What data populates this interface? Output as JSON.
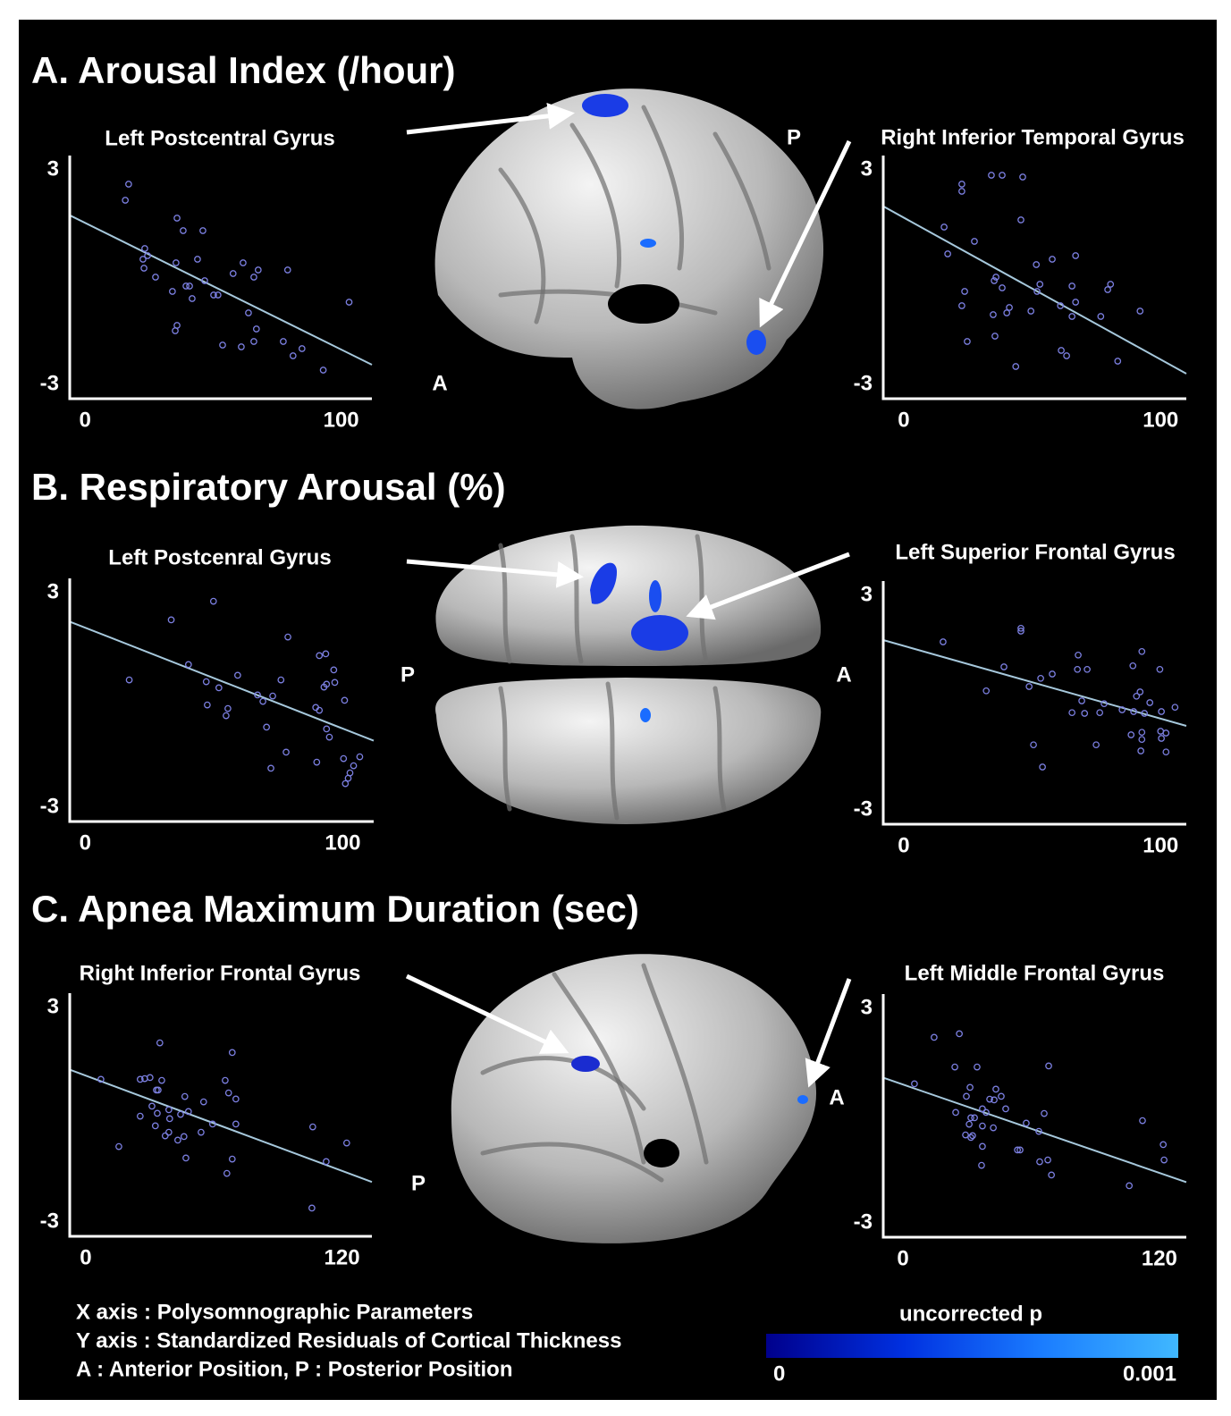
{
  "sections": [
    "A. Arousal Index (/hour)",
    "B. Respiratory Arousal (%)",
    "C. Apnea Maximum Duration (sec)"
  ],
  "orientation_labels": [
    "P",
    "A",
    "P",
    "A",
    "A",
    "P"
  ],
  "notes": [
    "X axis : Polysomnographic Parameters",
    "Y axis : Standardized Residuals of Cortical Thickness",
    "A : Anterior Position, P : Posterior Position"
  ],
  "colorbar": {
    "label": "uncorrected p",
    "ticks": [
      0,
      0.001
    ],
    "colors": [
      "#00008c",
      "#0030e0",
      "#1a7cff",
      "#40b8ff"
    ]
  },
  "chart_data": [
    {
      "type": "scatter",
      "title": "Left Postcentral Gyrus",
      "color": "#7b7fe0",
      "xlim": [
        -6,
        112
      ],
      "ylim": [
        -3.4,
        3.4
      ],
      "xticks": [
        0,
        100
      ],
      "yticks": [
        3,
        -3
      ],
      "x": [
        17,
        15.7,
        35.9,
        38.3,
        46,
        23.3,
        24.4,
        22.6,
        23,
        43.9,
        35.5,
        61.7,
        67.6,
        57.8,
        65.9,
        79.1,
        27.5,
        46.7,
        39.4,
        40.8,
        34.1,
        50.2,
        51.9,
        41.8,
        103.1,
        63.8,
        35.9,
        35.2,
        66.9,
        53.7,
        61,
        65.9,
        77.4,
        84.7,
        81.2,
        93
      ],
      "values": [
        2.6,
        2.15,
        1.65,
        1.3,
        1.3,
        0.8,
        0.6,
        0.5,
        0.25,
        0.5,
        0.4,
        0.4,
        0.2,
        0.1,
        0,
        0.2,
        0,
        -0.1,
        -0.25,
        -0.25,
        -0.4,
        -0.5,
        -0.5,
        -0.6,
        -0.7,
        -1.0,
        -1.35,
        -1.5,
        -1.45,
        -1.9,
        -1.95,
        -1.8,
        -1.8,
        -2.0,
        -2.2,
        -2.6
      ],
      "fit_line": {
        "x": [
          -6,
          112
        ],
        "y": [
          1.73,
          -2.45
        ],
        "color": "#a6c8dc"
      }
    },
    {
      "type": "scatter",
      "title": "Right Inferior Temporal Gyrus",
      "color": "#7b7fe0",
      "xlim": [
        -8,
        110
      ],
      "ylim": [
        -3.4,
        3.4
      ],
      "xticks": [
        0,
        100
      ],
      "yticks": [
        3,
        -3
      ],
      "x": [
        22.6,
        22.6,
        34.1,
        38.3,
        46.3,
        45.6,
        15.7,
        27.5,
        17.1,
        51.6,
        57.8,
        66.9,
        35.9,
        35.2,
        38.3,
        53,
        51.9,
        65.5,
        79.4,
        80.5,
        23.7,
        22.6,
        41.1,
        40.1,
        49.5,
        61,
        66.9,
        34.8,
        76.7,
        92,
        65.5,
        35.5,
        24.7,
        61.3,
        63.4,
        83.3,
        43.6
      ],
      "values": [
        2.6,
        2.4,
        2.85,
        2.85,
        2.8,
        1.6,
        1.4,
        1.0,
        0.65,
        0.35,
        0.5,
        0.6,
        0,
        -0.1,
        -0.3,
        -0.2,
        -0.4,
        -0.25,
        -0.35,
        -0.2,
        -0.4,
        -0.8,
        -0.85,
        -1.0,
        -0.95,
        -0.8,
        -0.7,
        -1.05,
        -1.1,
        -0.95,
        -1.1,
        -1.65,
        -1.8,
        -2.05,
        -2.2,
        -2.35,
        -2.5
      ],
      "fit_line": {
        "x": [
          -8,
          110
        ],
        "y": [
          1.98,
          -2.7
        ],
        "color": "#a6c8dc"
      }
    },
    {
      "type": "scatter",
      "title": "Left Postcenral Gyrus",
      "color": "#7b7fe0",
      "xlim": [
        -6,
        112
      ],
      "ylim": [
        -3.4,
        3.4
      ],
      "xticks": [
        0,
        100
      ],
      "yticks": [
        3,
        -3
      ],
      "x": [
        49.8,
        33.4,
        78.7,
        93.4,
        90.9,
        17.1,
        40.1,
        96.5,
        59.2,
        47,
        76,
        51.9,
        93.7,
        92.7,
        96.9,
        66.9,
        72.8,
        69,
        47.4,
        55.4,
        100.7,
        89.5,
        90.9,
        54.7,
        93.7,
        94.8,
        70.4,
        78,
        72.1,
        89.9,
        106.6,
        104.2,
        100.3,
        102.8,
        102.1,
        101
      ],
      "values": [
        2.76,
        2.24,
        1.76,
        1.29,
        1.24,
        0.56,
        0.99,
        0.84,
        0.69,
        0.51,
        0.56,
        0.34,
        0.44,
        0.36,
        0.49,
        0.14,
        0.11,
        -0.04,
        -0.14,
        -0.24,
        -0.01,
        -0.21,
        -0.29,
        -0.44,
        -0.81,
        -1.04,
        -0.76,
        -1.46,
        -1.91,
        -1.74,
        -1.59,
        -1.84,
        -1.64,
        -2.04,
        -2.19,
        -2.34
      ],
      "fit_line": {
        "x": [
          -6,
          112
        ],
        "y": [
          2.19,
          -1.14
        ],
        "color": "#a6c8dc"
      }
    },
    {
      "type": "scatter",
      "title": "Left Superior Frontal Gyrus",
      "color": "#7b7fe0",
      "xlim": [
        -8,
        110
      ],
      "ylim": [
        -3.4,
        3.4
      ],
      "xticks": [
        0,
        100
      ],
      "yticks": [
        3,
        -3
      ],
      "x": [
        45.6,
        45.6,
        15.3,
        67.9,
        92.7,
        39,
        89.2,
        99.7,
        67.6,
        71.4,
        57.8,
        53.3,
        32.1,
        48.8,
        92,
        90.6,
        95.8,
        69.3,
        78,
        70.4,
        65.5,
        76.3,
        85,
        89.5,
        93.7,
        100.3,
        105.6,
        100,
        88.5,
        92.7,
        102.1,
        92.7,
        100.3,
        50.5,
        74.9,
        92.3,
        102.1,
        54
      ],
      "values": [
        2.08,
        2.0,
        1.7,
        1.33,
        1.43,
        1.0,
        1.03,
        0.93,
        0.93,
        0.93,
        0.8,
        0.68,
        0.33,
        0.45,
        0.3,
        0.18,
        0,
        0.05,
        -0.03,
        -0.3,
        -0.28,
        -0.28,
        -0.2,
        -0.25,
        -0.3,
        -0.25,
        -0.13,
        -0.8,
        -0.9,
        -0.83,
        -0.85,
        -1.03,
        -1.0,
        -1.18,
        -1.18,
        -1.35,
        -1.38,
        -1.8
      ],
      "fit_line": {
        "x": [
          -8,
          110
        ],
        "y": [
          1.75,
          -0.65
        ],
        "color": "#a6c8dc"
      }
    },
    {
      "type": "scatter",
      "title": "Right Inferior Frontal Gyrus",
      "color": "#7b7fe0",
      "xlim": [
        -7.5,
        134
      ],
      "ylim": [
        -3.4,
        3.4
      ],
      "xticks": [
        0,
        120
      ],
      "yticks": [
        3,
        -3
      ],
      "x": [
        34.7,
        68.6,
        7.1,
        25.5,
        27.6,
        30.1,
        35.6,
        65.3,
        33.1,
        33.9,
        46.4,
        66.9,
        31,
        55.2,
        38.9,
        48.1,
        33.5,
        44.4,
        70.3,
        25.5,
        39.3,
        59.4,
        70.3,
        32.6,
        106.3,
        54,
        38.9,
        37.2,
        46,
        43.1,
        122.2,
        15.5,
        46.9,
        68.6,
        112.6,
        66.1,
        105.9
      ],
      "values": [
        2.01,
        1.74,
        0.99,
        0.99,
        1.01,
        1.04,
        0.96,
        0.96,
        0.69,
        0.69,
        0.51,
        0.61,
        0.24,
        0.36,
        0.14,
        0.09,
        0.04,
        0.01,
        0.44,
        -0.04,
        -0.11,
        -0.26,
        -0.26,
        -0.31,
        -0.34,
        -0.49,
        -0.49,
        -0.59,
        -0.61,
        -0.71,
        -0.79,
        -0.89,
        -1.21,
        -1.24,
        -1.31,
        -1.64,
        -2.61
      ],
      "fit_line": {
        "x": [
          -7.5,
          134
        ],
        "y": [
          1.26,
          -1.88
        ],
        "color": "#a6c8dc"
      }
    },
    {
      "type": "scatter",
      "title": "Left Middle Frontal Gyrus",
      "color": "#7b7fe0",
      "xlim": [
        -9.2,
        132.6
      ],
      "ylim": [
        -3.4,
        3.4
      ],
      "xticks": [
        0,
        120
      ],
      "yticks": [
        3,
        -3
      ],
      "x": [
        14.6,
        26.4,
        24.3,
        34.7,
        68.2,
        5.4,
        31.4,
        43.5,
        29.7,
        46,
        42.7,
        40.6,
        37.2,
        48.1,
        24.7,
        38.9,
        66.1,
        31.8,
        33.5,
        31,
        57.7,
        112.1,
        37.2,
        42.3,
        63.6,
        29.3,
        32.6,
        31.8,
        37.2,
        53.6,
        54.8,
        121.8,
        67.8,
        64,
        122.2,
        36.8,
        69.5,
        105.9
      ],
      "values": [
        2.19,
        2.29,
        1.36,
        1.36,
        1.39,
        0.89,
        0.79,
        0.74,
        0.54,
        0.54,
        0.44,
        0.46,
        0.19,
        0.19,
        0.09,
        0.09,
        0.06,
        -0.06,
        -0.06,
        -0.24,
        -0.21,
        -0.14,
        -0.29,
        -0.34,
        -0.44,
        -0.54,
        -0.56,
        -0.61,
        -0.86,
        -0.96,
        -0.96,
        -0.81,
        -1.24,
        -1.29,
        -1.24,
        -1.39,
        -1.66,
        -1.96
      ],
      "fit_line": {
        "x": [
          -9.2,
          132.6
        ],
        "y": [
          1.06,
          -1.86
        ],
        "color": "#a6c8dc"
      }
    }
  ]
}
